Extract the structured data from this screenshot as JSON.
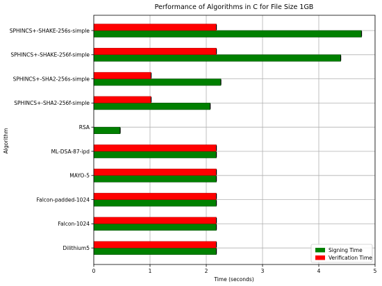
{
  "chart_data": {
    "type": "bar",
    "orientation": "horizontal",
    "title": "Performance of Algorithms in C for File Size 1GB",
    "xlabel": "Time (seconds)",
    "ylabel": "Algorithm",
    "xlim": [
      0,
      5
    ],
    "xticks": [
      "0",
      "1",
      "2",
      "3",
      "4",
      "5"
    ],
    "grid": true,
    "legend_position": "bottom-right",
    "categories": [
      "SPHINCS+-SHAKE-256s-simple",
      "SPHINCS+-SHAKE-256f-simple",
      "SPHINCS+-SHA2-256s-simple",
      "SPHINCS+-SHA2-256f-simple",
      "RSA",
      "ML-DSA-87-ipd",
      "MAYO-5",
      "Falcon-padded-1024",
      "Falcon-1024",
      "Dilithium5"
    ],
    "series": [
      {
        "name": "Signing Time",
        "color": "#008000",
        "values": [
          4.76,
          4.39,
          2.26,
          2.07,
          0.47,
          2.18,
          2.18,
          2.18,
          2.18,
          2.18
        ]
      },
      {
        "name": "Verification Time",
        "color": "#ff0000",
        "values": [
          2.18,
          2.18,
          1.02,
          1.02,
          null,
          2.18,
          2.18,
          2.18,
          2.18,
          2.18
        ]
      }
    ]
  }
}
